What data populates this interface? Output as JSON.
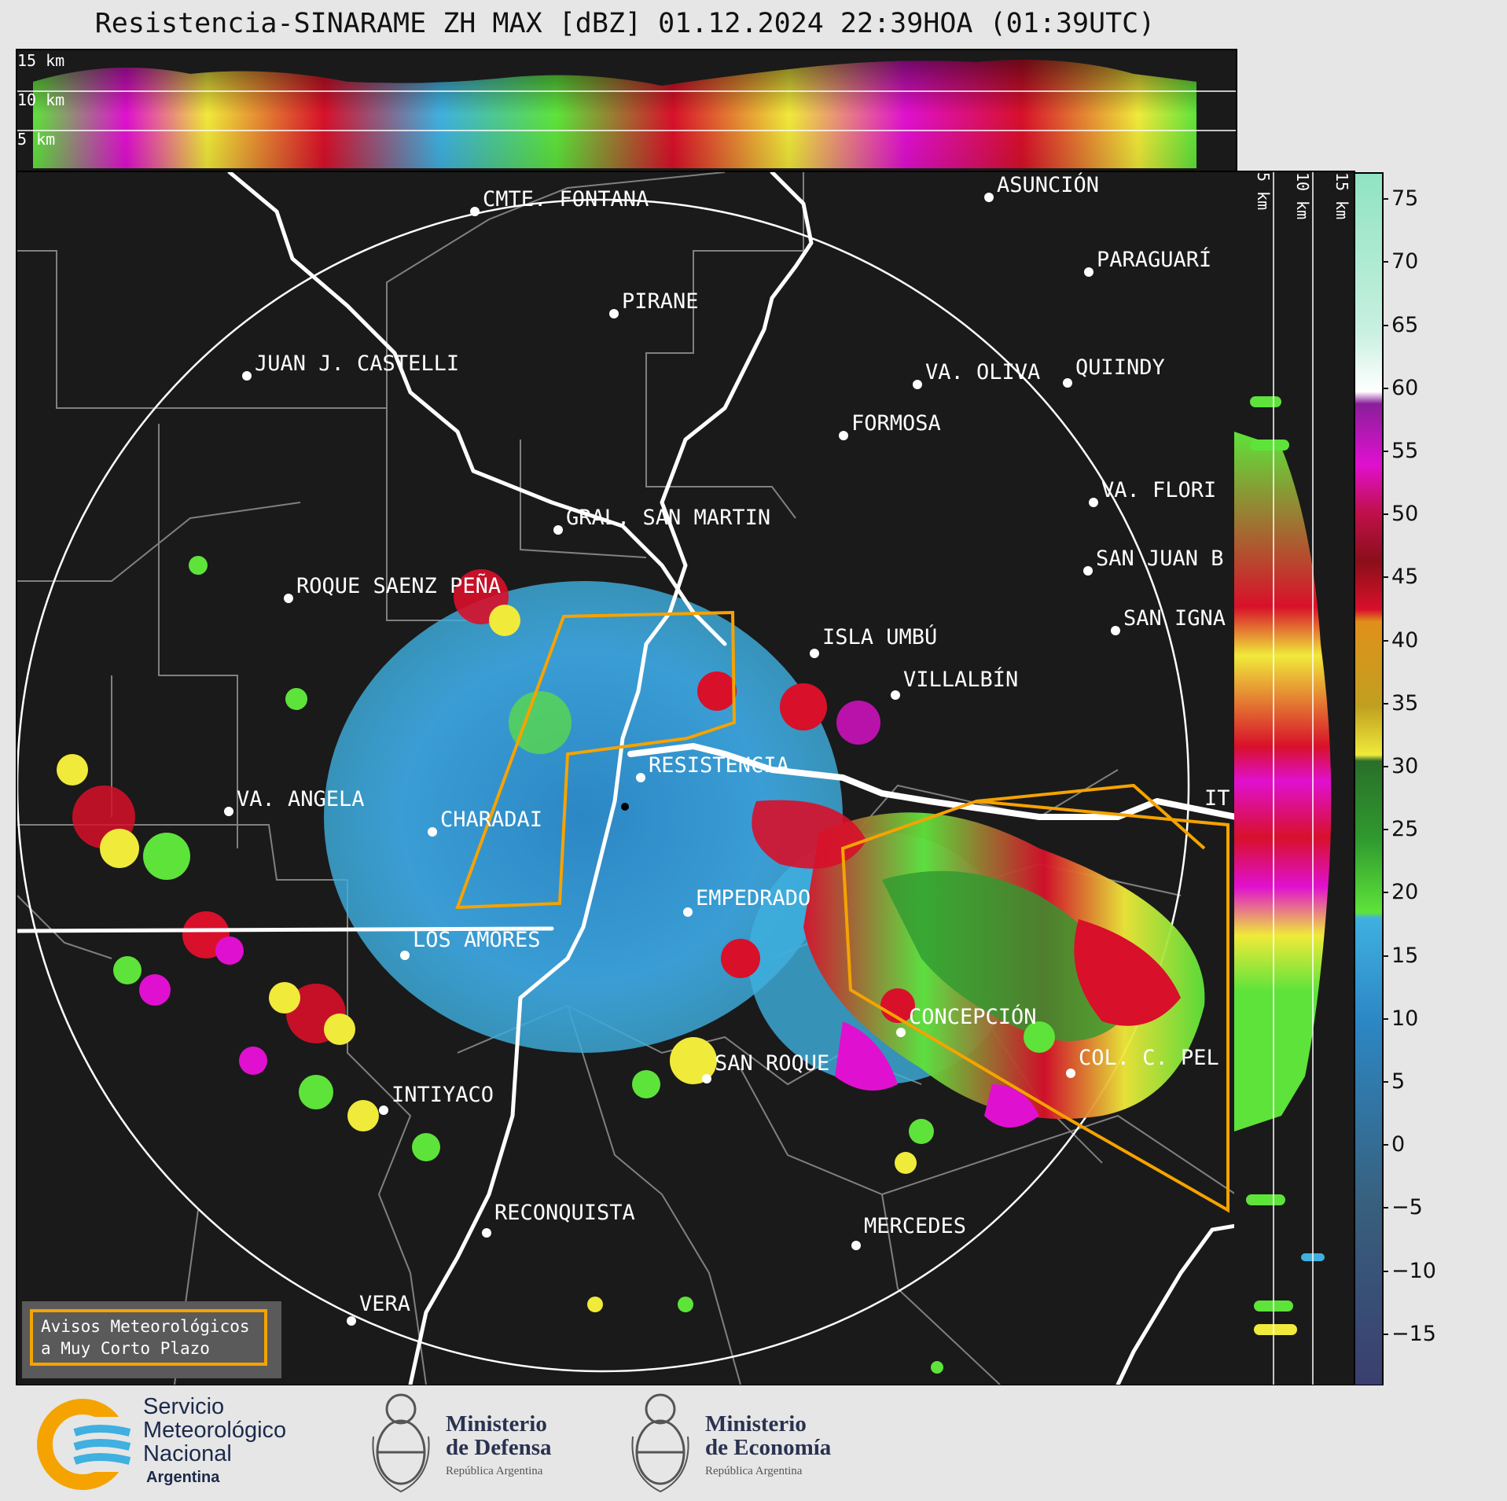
{
  "header": {
    "title": "Resistencia-SINARAME ZH MAX [dBZ] 01.12.2024 22:39HOA (01:39UTC)"
  },
  "top_panel": {
    "height_labels": [
      "15 km",
      "10 km",
      "5 km"
    ]
  },
  "right_panel": {
    "height_labels": [
      "5 km",
      "10 km",
      "15 km"
    ]
  },
  "colorbar": {
    "unit": "dBZ",
    "ticks": [
      "75",
      "70",
      "65",
      "60",
      "55",
      "50",
      "45",
      "40",
      "35",
      "30",
      "25",
      "20",
      "15",
      "10",
      "5",
      "0",
      "−5",
      "−10",
      "−15"
    ],
    "min": -19,
    "max": 77,
    "colors": {
      "deep_blue": "#3a3f6e",
      "blue": "#2c87c4",
      "light_blue": "#3fb0e0",
      "green": "#2f9a2f",
      "light_green": "#5ee33a",
      "yellow": "#f0ea3a",
      "orange": "#e0901a",
      "red": "#d8102a",
      "magenta": "#e010d0",
      "purple": "#8a1f9a",
      "white": "#ffffff",
      "mint": "#8fe3c3"
    }
  },
  "map": {
    "cities": [
      {
        "name": "ASUNCIÓN"
      },
      {
        "name": "CMTE. FONTANA"
      },
      {
        "name": "PARAGUARÍ"
      },
      {
        "name": "PIRANE"
      },
      {
        "name": "JUAN J. CASTELLI"
      },
      {
        "name": "VA. OLIVA"
      },
      {
        "name": "QUIINDY"
      },
      {
        "name": "FORMOSA"
      },
      {
        "name": "VA. FLORI"
      },
      {
        "name": "GRAL. SAN MARTIN"
      },
      {
        "name": "SAN JUAN B"
      },
      {
        "name": "ROQUE SAENZ PEÑA"
      },
      {
        "name": "SAN IGNA"
      },
      {
        "name": "ISLA UMBÚ"
      },
      {
        "name": "VILLALBÍN"
      },
      {
        "name": "RESISTENCIA"
      },
      {
        "name": "VA. ANGELA"
      },
      {
        "name": "CHARADAI"
      },
      {
        "name": "EMPEDRADO"
      },
      {
        "name": "LOS AMORES"
      },
      {
        "name": "CONCEPCIÓN"
      },
      {
        "name": "COL. C. PEL"
      },
      {
        "name": "SAN ROQUE"
      },
      {
        "name": "INTIYACO"
      },
      {
        "name": "RECONQUISTA"
      },
      {
        "name": "MERCEDES"
      },
      {
        "name": "VERA"
      },
      {
        "name": "IT"
      }
    ]
  },
  "warning_box": {
    "line1": "Avisos Meteorológicos",
    "line2": "a Muy Corto Plazo"
  },
  "footer": {
    "smn_line1": "Servicio",
    "smn_line2": "Meteorológico",
    "smn_line3": "Nacional",
    "smn_line4": "Argentina",
    "defensa_line1": "Ministerio",
    "defensa_line2": "de Defensa",
    "defensa_line3": "República Argentina",
    "economia_line1": "Ministerio",
    "economia_line2": "de Economía",
    "economia_line3": "República Argentina"
  }
}
